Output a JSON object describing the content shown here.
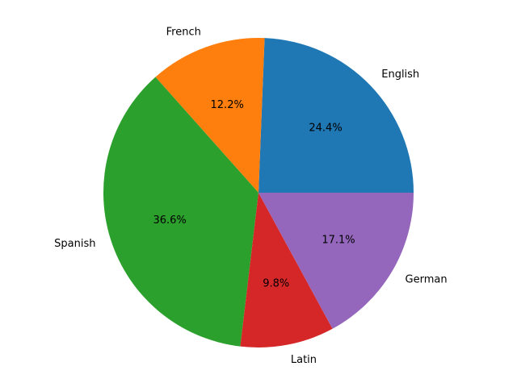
{
  "chart_data": {
    "type": "pie",
    "categories": [
      "English",
      "French",
      "Spanish",
      "Latin",
      "German"
    ],
    "values": [
      24.4,
      12.2,
      36.6,
      9.8,
      17.1
    ],
    "percent_labels": [
      "24.4%",
      "12.2%",
      "36.6%",
      "9.8%",
      "17.1%"
    ],
    "colors": [
      "#1f77b4",
      "#ff7f0e",
      "#2ca02c",
      "#d62728",
      "#9467bd"
    ],
    "start_angle_deg": 0,
    "direction": "counterclockwise",
    "title": "",
    "legend": false
  }
}
